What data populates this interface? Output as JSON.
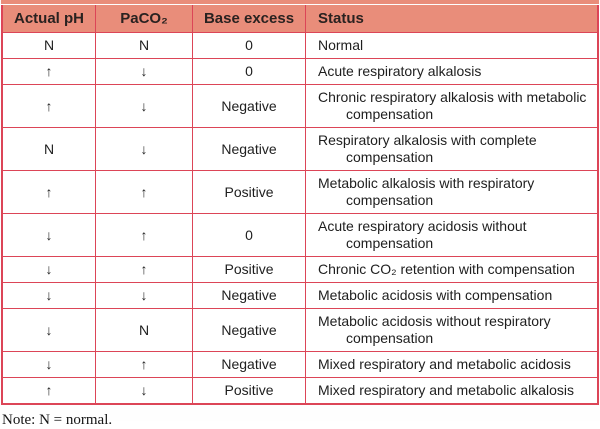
{
  "table": {
    "columns": [
      "Actual pH",
      "PaCO₂",
      "Base excess",
      "Status"
    ],
    "rows": [
      [
        "N",
        "N",
        "0",
        "Normal"
      ],
      [
        "↑",
        "↓",
        "0",
        "Acute respiratory alkalosis"
      ],
      [
        "↑",
        "↓",
        "Negative",
        "Chronic respiratory alkalosis with metabolic compensation"
      ],
      [
        "N",
        "↓",
        "Negative",
        "Respiratory alkalosis with complete compensation"
      ],
      [
        "↑",
        "↑",
        "Positive",
        "Metabolic alkalosis with respiratory compensation"
      ],
      [
        "↓",
        "↑",
        "0",
        "Acute respiratory acidosis without compensation"
      ],
      [
        "↓",
        "↑",
        "Positive",
        "Chronic CO₂ retention with compensation"
      ],
      [
        "↓",
        "↓",
        "Negative",
        "Metabolic acidosis with compensation"
      ],
      [
        "↓",
        "N",
        "Negative",
        "Metabolic acidosis without respiratory compensation"
      ],
      [
        "↓",
        "↑",
        "Negative",
        "Mixed respiratory and metabolic acidosis"
      ],
      [
        "↑",
        "↓",
        "Positive",
        "Mixed respiratory and metabolic alkalosis"
      ]
    ]
  },
  "note": "Note: N = normal.",
  "colors": {
    "header_bg": "#e98d7a",
    "border_red": "#dc4557",
    "text": "#1e1e1e"
  }
}
